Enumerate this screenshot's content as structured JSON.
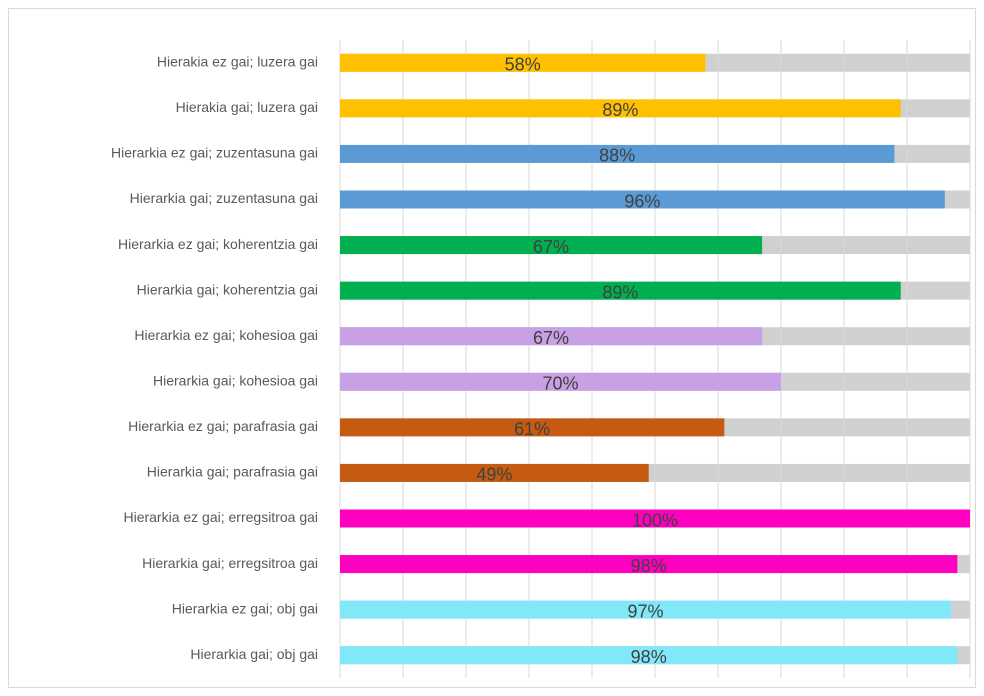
{
  "chart_data": {
    "type": "bar",
    "orientation": "horizontal",
    "categories": [
      "Hierakia ez gai; luzera gai",
      "Hierakia gai; luzera gai",
      "Hierarkia ez gai; zuzentasuna gai",
      "Hierarkia gai; zuzentasuna gai",
      "Hierarkia ez gai; koherentzia gai",
      "Hierarkia gai; koherentzia gai",
      "Hierarkia ez gai; kohesioa gai",
      "Hierarkia gai; kohesioa gai",
      "Hierarkia ez gai; parafrasia gai",
      "Hierarkia gai; parafrasia gai",
      "Hierarkia ez gai; erregsitroa gai",
      "Hierarkia gai; erregsitroa gai",
      "Hierarkia ez gai; obj gai",
      "Hierarkia gai; obj gai"
    ],
    "values": [
      58,
      89,
      88,
      96,
      67,
      89,
      67,
      70,
      61,
      49,
      100,
      98,
      97,
      98
    ],
    "value_labels": [
      "58%",
      "89%",
      "88%",
      "96%",
      "67%",
      "89%",
      "67%",
      "70%",
      "61%",
      "49%",
      "100%",
      "98%",
      "97%",
      "98%"
    ],
    "colors": [
      "#ffc000",
      "#ffc000",
      "#5b9bd5",
      "#5b9bd5",
      "#00b050",
      "#00b050",
      "#c8a0e6",
      "#c8a0e6",
      "#c55a11",
      "#c55a11",
      "#ff00c0",
      "#ff00c0",
      "#80e8f8",
      "#80e8f8"
    ],
    "xlim": [
      0,
      100
    ],
    "xticks": [
      0,
      10,
      20,
      30,
      40,
      50,
      60,
      70,
      80,
      90,
      100
    ],
    "grid": true
  }
}
